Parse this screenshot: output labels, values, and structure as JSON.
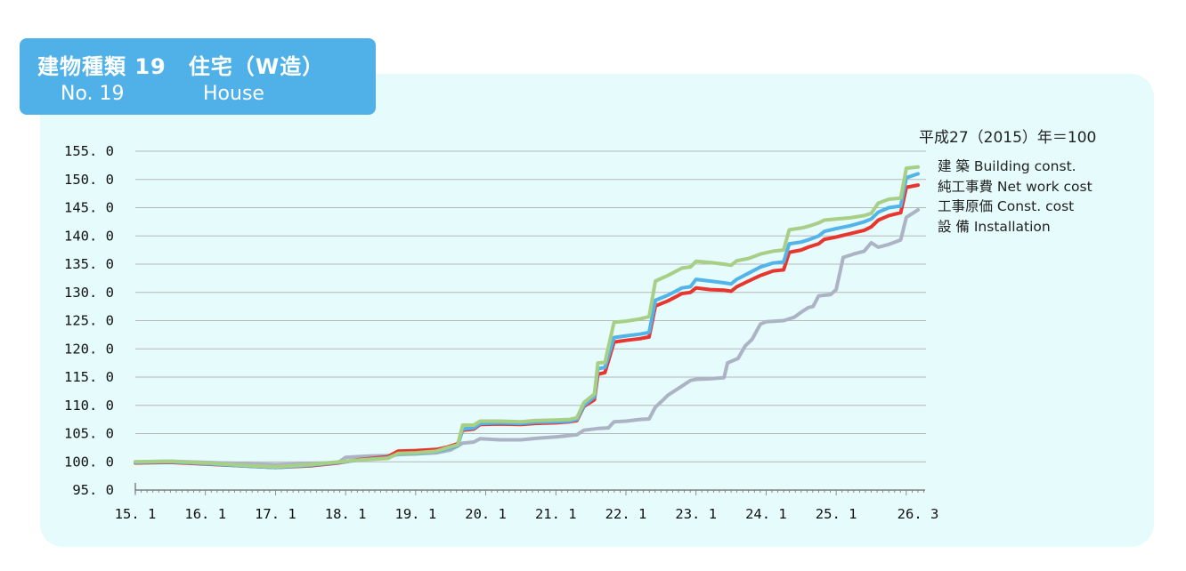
{
  "header": {
    "title": "建物種類 19　住宅（W造）",
    "number": "No. 19",
    "name_en": "House"
  },
  "chart_data": {
    "type": "line",
    "unit_note": "平成27（2015）年＝100",
    "x_tick_labels": [
      "15. 1",
      "16. 1",
      "17. 1",
      "18. 1",
      "19. 1",
      "20. 1",
      "21. 1",
      "22. 1",
      "23. 1",
      "24. 1",
      "25. 1",
      "26. 3"
    ],
    "y_tick_labels": [
      "95. 0",
      "100. 0",
      "105. 0",
      "110. 0",
      "115. 0",
      "120. 0",
      "125. 0",
      "130. 0",
      "135. 0",
      "140. 0",
      "145. 0",
      "150. 0",
      "155. 0"
    ],
    "ylim": [
      95,
      155
    ],
    "xlim": [
      2015.0,
      2026.167
    ],
    "grid": true,
    "legend_position": "right",
    "series": [
      {
        "name": "建 築  Building const.",
        "color": "#a8cf86",
        "points": [
          [
            2015.0,
            100.0
          ],
          [
            2015.5,
            100.1
          ],
          [
            2016.0,
            99.8
          ],
          [
            2016.5,
            99.4
          ],
          [
            2017.0,
            99.1
          ],
          [
            2017.5,
            99.5
          ],
          [
            2017.9,
            100.0
          ],
          [
            2018.2,
            100.3
          ],
          [
            2018.6,
            100.6
          ],
          [
            2018.75,
            101.5
          ],
          [
            2019.0,
            101.6
          ],
          [
            2019.3,
            101.9
          ],
          [
            2019.45,
            102.5
          ],
          [
            2019.6,
            103.0
          ],
          [
            2019.67,
            106.5
          ],
          [
            2019.83,
            106.5
          ],
          [
            2019.92,
            107.2
          ],
          [
            2020.2,
            107.2
          ],
          [
            2020.5,
            107.1
          ],
          [
            2020.7,
            107.3
          ],
          [
            2021.0,
            107.4
          ],
          [
            2021.2,
            107.5
          ],
          [
            2021.3,
            107.8
          ],
          [
            2021.4,
            110.5
          ],
          [
            2021.55,
            112.0
          ],
          [
            2021.6,
            117.5
          ],
          [
            2021.7,
            117.6
          ],
          [
            2021.83,
            124.7
          ],
          [
            2022.0,
            124.9
          ],
          [
            2022.2,
            125.3
          ],
          [
            2022.33,
            125.7
          ],
          [
            2022.42,
            132.0
          ],
          [
            2022.6,
            133.0
          ],
          [
            2022.8,
            134.3
          ],
          [
            2022.92,
            134.5
          ],
          [
            2023.0,
            135.5
          ],
          [
            2023.2,
            135.3
          ],
          [
            2023.4,
            135.0
          ],
          [
            2023.5,
            134.8
          ],
          [
            2023.58,
            135.6
          ],
          [
            2023.75,
            136.0
          ],
          [
            2023.92,
            136.8
          ],
          [
            2024.1,
            137.3
          ],
          [
            2024.25,
            137.5
          ],
          [
            2024.33,
            141.1
          ],
          [
            2024.5,
            141.4
          ],
          [
            2024.6,
            141.7
          ],
          [
            2024.75,
            142.3
          ],
          [
            2024.83,
            142.8
          ],
          [
            2025.0,
            143.0
          ],
          [
            2025.2,
            143.2
          ],
          [
            2025.4,
            143.6
          ],
          [
            2025.5,
            144.0
          ],
          [
            2025.6,
            145.8
          ],
          [
            2025.75,
            146.5
          ],
          [
            2025.92,
            146.7
          ],
          [
            2026.0,
            152.0
          ],
          [
            2026.167,
            152.2
          ]
        ]
      },
      {
        "name": "純工事費  Net work cost",
        "color": "#52b4e8",
        "points": [
          [
            2015.0,
            99.9
          ],
          [
            2015.5,
            100.0
          ],
          [
            2016.0,
            99.7
          ],
          [
            2016.5,
            99.3
          ],
          [
            2017.0,
            99.0
          ],
          [
            2017.5,
            99.4
          ],
          [
            2017.9,
            99.9
          ],
          [
            2018.2,
            100.3
          ],
          [
            2018.6,
            100.7
          ],
          [
            2018.75,
            101.4
          ],
          [
            2019.0,
            101.5
          ],
          [
            2019.3,
            101.8
          ],
          [
            2019.45,
            102.3
          ],
          [
            2019.6,
            102.8
          ],
          [
            2019.67,
            105.8
          ],
          [
            2019.83,
            106.0
          ],
          [
            2019.92,
            106.8
          ],
          [
            2020.2,
            106.9
          ],
          [
            2020.5,
            106.8
          ],
          [
            2020.7,
            107.0
          ],
          [
            2021.0,
            107.1
          ],
          [
            2021.2,
            107.2
          ],
          [
            2021.3,
            107.5
          ],
          [
            2021.4,
            110.0
          ],
          [
            2021.55,
            111.5
          ],
          [
            2021.6,
            116.5
          ],
          [
            2021.7,
            116.7
          ],
          [
            2021.83,
            122.0
          ],
          [
            2022.0,
            122.3
          ],
          [
            2022.2,
            122.6
          ],
          [
            2022.33,
            122.9
          ],
          [
            2022.42,
            128.6
          ],
          [
            2022.6,
            129.5
          ],
          [
            2022.8,
            130.8
          ],
          [
            2022.92,
            131.0
          ],
          [
            2023.0,
            132.3
          ],
          [
            2023.2,
            132.0
          ],
          [
            2023.4,
            131.7
          ],
          [
            2023.5,
            131.5
          ],
          [
            2023.58,
            132.3
          ],
          [
            2023.75,
            133.4
          ],
          [
            2023.92,
            134.5
          ],
          [
            2024.1,
            135.2
          ],
          [
            2024.25,
            135.4
          ],
          [
            2024.33,
            138.6
          ],
          [
            2024.5,
            138.9
          ],
          [
            2024.6,
            139.3
          ],
          [
            2024.75,
            140.0
          ],
          [
            2024.83,
            140.8
          ],
          [
            2025.0,
            141.3
          ],
          [
            2025.2,
            141.8
          ],
          [
            2025.4,
            142.5
          ],
          [
            2025.5,
            143.0
          ],
          [
            2025.6,
            144.2
          ],
          [
            2025.75,
            145.0
          ],
          [
            2025.92,
            145.3
          ],
          [
            2026.0,
            150.3
          ],
          [
            2026.167,
            151.0
          ]
        ]
      },
      {
        "name": "工事原価  Const. cost",
        "color": "#e8352e",
        "points": [
          [
            2015.0,
            99.8
          ],
          [
            2015.5,
            99.9
          ],
          [
            2016.0,
            99.6
          ],
          [
            2016.5,
            99.3
          ],
          [
            2017.0,
            99.0
          ],
          [
            2017.5,
            99.3
          ],
          [
            2017.9,
            99.8
          ],
          [
            2018.2,
            100.4
          ],
          [
            2018.6,
            100.9
          ],
          [
            2018.75,
            101.9
          ],
          [
            2019.0,
            102.0
          ],
          [
            2019.3,
            102.2
          ],
          [
            2019.45,
            102.6
          ],
          [
            2019.6,
            103.2
          ],
          [
            2019.67,
            105.6
          ],
          [
            2019.83,
            105.8
          ],
          [
            2019.92,
            106.6
          ],
          [
            2020.2,
            106.7
          ],
          [
            2020.5,
            106.6
          ],
          [
            2020.7,
            106.8
          ],
          [
            2021.0,
            106.9
          ],
          [
            2021.2,
            107.1
          ],
          [
            2021.3,
            107.3
          ],
          [
            2021.4,
            109.8
          ],
          [
            2021.55,
            111.0
          ],
          [
            2021.6,
            115.5
          ],
          [
            2021.7,
            115.8
          ],
          [
            2021.83,
            121.2
          ],
          [
            2022.0,
            121.5
          ],
          [
            2022.2,
            121.8
          ],
          [
            2022.33,
            122.1
          ],
          [
            2022.42,
            127.6
          ],
          [
            2022.6,
            128.5
          ],
          [
            2022.8,
            129.8
          ],
          [
            2022.92,
            130.0
          ],
          [
            2023.0,
            130.8
          ],
          [
            2023.2,
            130.5
          ],
          [
            2023.4,
            130.4
          ],
          [
            2023.5,
            130.2
          ],
          [
            2023.58,
            131.0
          ],
          [
            2023.75,
            132.0
          ],
          [
            2023.92,
            133.0
          ],
          [
            2024.1,
            133.8
          ],
          [
            2024.25,
            134.0
          ],
          [
            2024.33,
            137.1
          ],
          [
            2024.5,
            137.5
          ],
          [
            2024.6,
            138.0
          ],
          [
            2024.75,
            138.6
          ],
          [
            2024.83,
            139.4
          ],
          [
            2025.0,
            139.8
          ],
          [
            2025.2,
            140.4
          ],
          [
            2025.4,
            141.0
          ],
          [
            2025.5,
            141.6
          ],
          [
            2025.6,
            142.8
          ],
          [
            2025.75,
            143.6
          ],
          [
            2025.92,
            144.1
          ],
          [
            2026.0,
            148.6
          ],
          [
            2026.167,
            149.0
          ]
        ]
      },
      {
        "name": "設 備  Installation",
        "color": "#acb3c4",
        "points": [
          [
            2015.0,
            100.0
          ],
          [
            2015.5,
            100.1
          ],
          [
            2016.0,
            99.9
          ],
          [
            2016.5,
            99.7
          ],
          [
            2017.0,
            99.5
          ],
          [
            2017.5,
            99.7
          ],
          [
            2017.9,
            99.9
          ],
          [
            2018.0,
            100.8
          ],
          [
            2018.3,
            101.0
          ],
          [
            2018.6,
            101.1
          ],
          [
            2018.75,
            101.3
          ],
          [
            2019.0,
            101.4
          ],
          [
            2019.3,
            101.6
          ],
          [
            2019.5,
            102.1
          ],
          [
            2019.67,
            103.3
          ],
          [
            2019.83,
            103.5
          ],
          [
            2019.92,
            104.1
          ],
          [
            2020.2,
            103.9
          ],
          [
            2020.5,
            103.9
          ],
          [
            2020.75,
            104.2
          ],
          [
            2021.0,
            104.4
          ],
          [
            2021.3,
            104.8
          ],
          [
            2021.4,
            105.6
          ],
          [
            2021.6,
            105.9
          ],
          [
            2021.75,
            106.0
          ],
          [
            2021.83,
            107.1
          ],
          [
            2022.0,
            107.2
          ],
          [
            2022.2,
            107.5
          ],
          [
            2022.33,
            107.6
          ],
          [
            2022.42,
            109.7
          ],
          [
            2022.5,
            110.6
          ],
          [
            2022.6,
            111.8
          ],
          [
            2022.75,
            113.0
          ],
          [
            2022.92,
            114.4
          ],
          [
            2023.0,
            114.6
          ],
          [
            2023.2,
            114.7
          ],
          [
            2023.4,
            114.9
          ],
          [
            2023.45,
            117.5
          ],
          [
            2023.6,
            118.3
          ],
          [
            2023.7,
            120.5
          ],
          [
            2023.8,
            121.7
          ],
          [
            2023.92,
            124.4
          ],
          [
            2024.0,
            124.8
          ],
          [
            2024.25,
            125.0
          ],
          [
            2024.4,
            125.6
          ],
          [
            2024.5,
            126.5
          ],
          [
            2024.6,
            127.3
          ],
          [
            2024.67,
            127.5
          ],
          [
            2024.75,
            129.4
          ],
          [
            2024.92,
            129.6
          ],
          [
            2025.0,
            130.5
          ],
          [
            2025.1,
            136.2
          ],
          [
            2025.25,
            136.8
          ],
          [
            2025.4,
            137.3
          ],
          [
            2025.5,
            138.8
          ],
          [
            2025.6,
            138.0
          ],
          [
            2025.75,
            138.5
          ],
          [
            2025.92,
            139.3
          ],
          [
            2026.0,
            143.3
          ],
          [
            2026.167,
            144.6
          ]
        ]
      }
    ]
  }
}
